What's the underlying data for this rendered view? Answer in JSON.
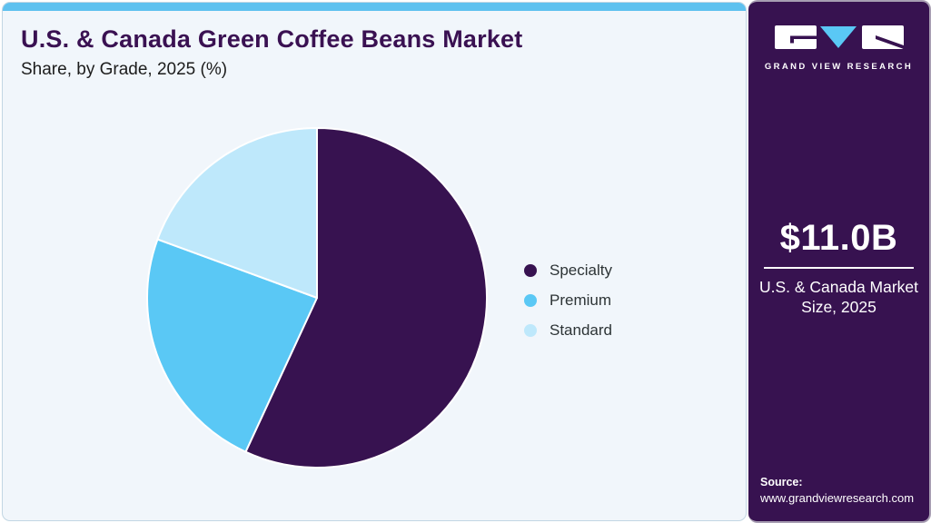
{
  "chart_data": {
    "type": "pie",
    "title": "U.S. & Canada Green Coffee Beans Market",
    "subtitle": "Share, by Grade, 2025 (%)",
    "unit": "%",
    "start_angle_deg": 0,
    "direction": "clockwise",
    "legend_position": "right",
    "slices": [
      {
        "label": "Specialty",
        "value": 56.9,
        "color": "#371250"
      },
      {
        "label": "Premium",
        "value": 23.7,
        "color": "#5ac8f5"
      },
      {
        "label": "Standard",
        "value": 19.4,
        "color": "#bee8fb"
      }
    ],
    "slice_separator_color": "#ffffff",
    "background_color": "#f1f6fb"
  },
  "sidebar": {
    "logo_text": "GRAND VIEW RESEARCH",
    "market_value": "$11.0B",
    "market_label": "U.S. & Canada Market Size, 2025",
    "source_label": "Source:",
    "source_url": "www.grandviewresearch.com",
    "bg_color": "#371250"
  },
  "accents": {
    "top_strip_color": "#5ec1ef",
    "title_color": "#3a1152"
  }
}
